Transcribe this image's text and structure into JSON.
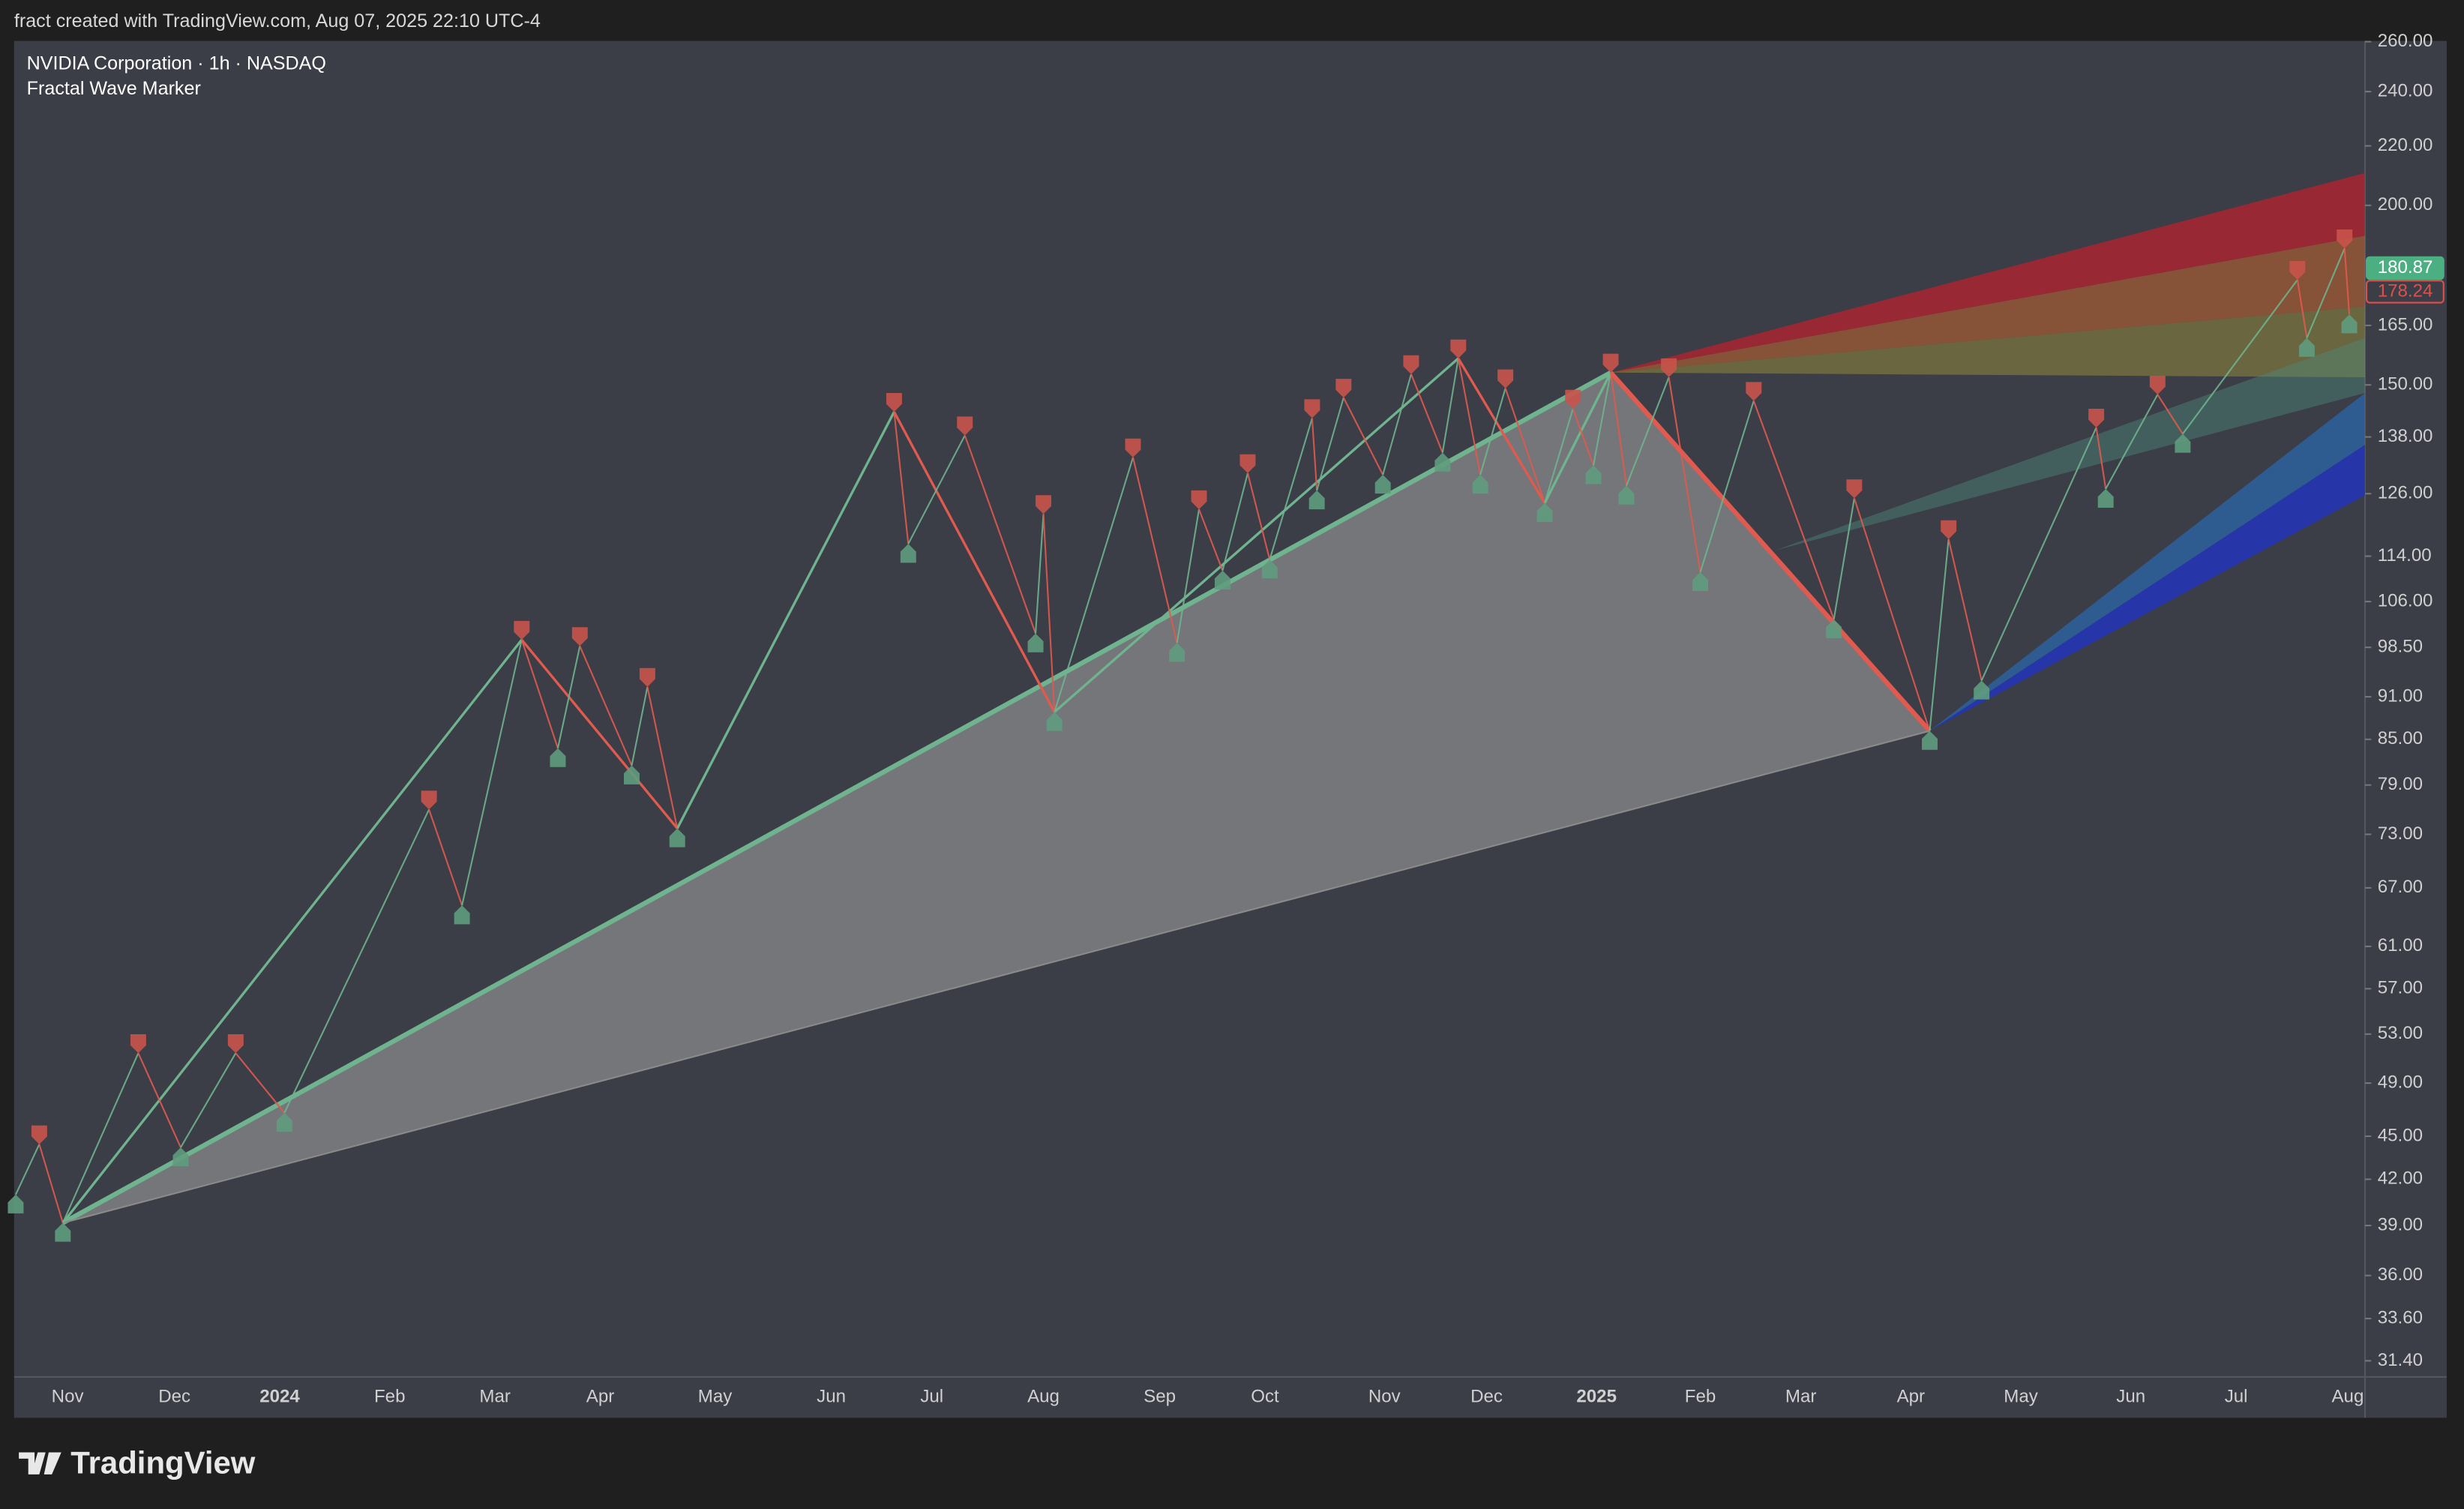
{
  "header": {
    "text": "fract created with TradingView.com, Aug 07, 2025 22:10 UTC-4"
  },
  "chart_data": {
    "type": "line",
    "title": "NVIDIA Corporation · 1h · NASDAQ",
    "subtitle": "Fractal Wave Marker",
    "log_scale": true,
    "ylim": [
      30.6,
      260.3
    ],
    "yticks": [
      {
        "value": 260,
        "label": "260.00"
      },
      {
        "value": 240,
        "label": "240.00"
      },
      {
        "value": 220,
        "label": "220.00"
      },
      {
        "value": 200,
        "label": "200.00"
      },
      {
        "value": 165,
        "label": "165.00"
      },
      {
        "value": 150,
        "label": "150.00"
      },
      {
        "value": 138,
        "label": "138.00"
      },
      {
        "value": 126,
        "label": "126.00"
      },
      {
        "value": 114,
        "label": "114.00"
      },
      {
        "value": 106,
        "label": "106.00"
      },
      {
        "value": 98.5,
        "label": "98.50"
      },
      {
        "value": 91,
        "label": "91.00"
      },
      {
        "value": 85,
        "label": "85.00"
      },
      {
        "value": 79,
        "label": "79.00"
      },
      {
        "value": 73,
        "label": "73.00"
      },
      {
        "value": 67,
        "label": "67.00"
      },
      {
        "value": 61,
        "label": "61.00"
      },
      {
        "value": 57,
        "label": "57.00"
      },
      {
        "value": 53,
        "label": "53.00"
      },
      {
        "value": 49,
        "label": "49.00"
      },
      {
        "value": 45,
        "label": "45.00"
      },
      {
        "value": 42,
        "label": "42.00"
      },
      {
        "value": 39,
        "label": "39.00"
      },
      {
        "value": 36,
        "label": "36.00"
      },
      {
        "value": 33.6,
        "label": "33.60"
      },
      {
        "value": 31.4,
        "label": "31.40"
      }
    ],
    "x_labels": [
      "Nov",
      "Dec",
      "2024",
      "Feb",
      "Mar",
      "Apr",
      "May",
      "Jun",
      "Jul",
      "Aug",
      "Sep",
      "Oct",
      "Nov",
      "Dec",
      "2025",
      "Feb",
      "Mar",
      "Apr",
      "May",
      "Jun",
      "Jul",
      "Aug"
    ],
    "price_labels": [
      180.87,
      178.24
    ],
    "price_label_colors": [
      "#4caf82",
      "#e0504a"
    ]
  },
  "footer": {
    "logo": "TradingView"
  }
}
